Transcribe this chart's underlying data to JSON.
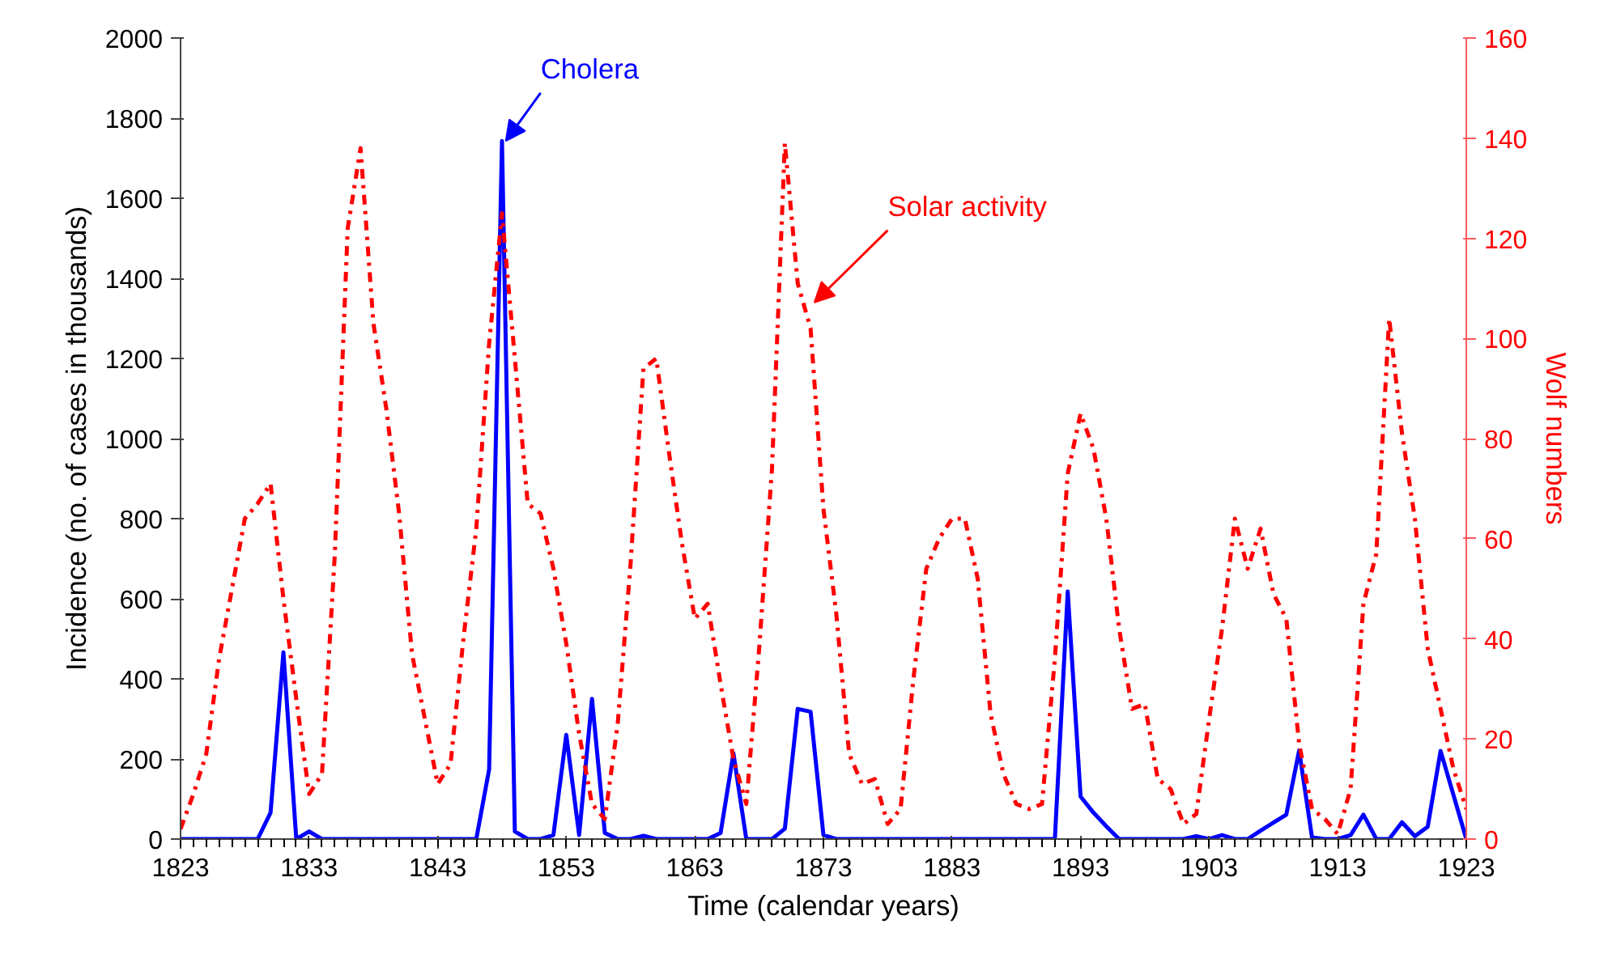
{
  "chart_data": {
    "type": "line",
    "xlabel": "Time (calendar years)",
    "ylabel": "Incidence (no. of cases in thousands)",
    "y2label": "Wolf numbers",
    "x": [
      1823,
      1824,
      1825,
      1826,
      1827,
      1828,
      1829,
      1830,
      1831,
      1832,
      1833,
      1834,
      1835,
      1836,
      1837,
      1838,
      1839,
      1840,
      1841,
      1842,
      1843,
      1844,
      1845,
      1846,
      1847,
      1848,
      1849,
      1850,
      1851,
      1852,
      1853,
      1854,
      1855,
      1856,
      1857,
      1858,
      1859,
      1860,
      1861,
      1862,
      1863,
      1864,
      1865,
      1866,
      1867,
      1868,
      1869,
      1870,
      1871,
      1872,
      1873,
      1874,
      1875,
      1876,
      1877,
      1878,
      1879,
      1880,
      1881,
      1882,
      1883,
      1884,
      1885,
      1886,
      1887,
      1888,
      1889,
      1890,
      1891,
      1892,
      1893,
      1894,
      1895,
      1896,
      1897,
      1898,
      1899,
      1900,
      1901,
      1902,
      1903,
      1904,
      1905,
      1906,
      1907,
      1908,
      1909,
      1910,
      1911,
      1912,
      1913,
      1914,
      1915,
      1916,
      1917,
      1918,
      1919,
      1920,
      1921,
      1922,
      1923
    ],
    "series": [
      {
        "color": "#0000ff",
        "line_style": "solid",
        "values": [
          0,
          0,
          0,
          0,
          0,
          0,
          0,
          66,
          466,
          0,
          19,
          0,
          0,
          0,
          0,
          0,
          0,
          0,
          0,
          0,
          0,
          0,
          0,
          0,
          174,
          1743,
          19,
          0,
          0,
          10,
          260,
          10,
          350,
          15,
          0,
          0,
          8,
          0,
          0,
          0,
          0,
          0,
          15,
          214,
          0,
          0,
          0,
          26,
          325,
          318,
          10,
          0,
          0,
          0,
          0,
          0,
          0,
          0,
          0,
          0,
          0,
          0,
          0,
          0,
          0,
          0,
          0,
          0,
          0,
          618,
          106,
          66,
          32,
          0,
          0,
          0,
          0,
          0,
          0,
          7,
          0,
          10,
          0,
          0,
          21,
          41,
          61,
          221,
          4,
          0,
          0,
          10,
          61,
          0,
          0,
          42,
          7,
          31,
          220,
          110,
          0
        ]
      },
      {
        "color": "#ff0000",
        "line_style": "dashdot",
        "axis": "y2",
        "values": [
          2,
          9,
          17,
          36,
          50,
          64,
          67,
          71,
          48,
          28,
          9,
          13,
          57,
          122,
          138,
          103,
          86,
          65,
          37,
          24,
          11,
          15,
          40,
          62,
          99,
          125,
          96,
          67,
          65,
          54,
          39,
          21,
          7,
          4,
          23,
          55,
          94,
          96,
          77,
          59,
          44,
          47,
          31,
          16,
          7,
          38,
          74,
          139,
          111,
          102,
          66,
          45,
          17,
          11,
          12,
          3,
          6,
          32,
          54,
          60,
          64,
          64,
          52,
          25,
          13,
          7,
          6,
          7,
          36,
          73,
          85,
          78,
          64,
          42,
          26,
          27,
          12,
          10,
          3,
          5,
          24,
          42,
          64,
          54,
          62,
          49,
          44,
          19,
          6,
          4,
          1,
          10,
          47,
          57,
          104,
          81,
          64,
          38,
          26,
          14,
          6
        ]
      }
    ],
    "xlim": [
      1823,
      1923
    ],
    "xticks": [
      1823,
      1833,
      1843,
      1853,
      1863,
      1873,
      1883,
      1893,
      1903,
      1913,
      1923
    ],
    "ylim": [
      0,
      2000
    ],
    "yticks": [
      0,
      200,
      400,
      600,
      800,
      1000,
      1200,
      1400,
      1600,
      1800,
      2000
    ],
    "y2lim": [
      0,
      160
    ],
    "y2ticks": [
      0,
      20,
      40,
      60,
      80,
      100,
      120,
      140,
      160
    ],
    "grid": false,
    "marker": "none",
    "annotations": [
      {
        "text": "Cholera",
        "x": 1848,
        "y": 1743
      },
      {
        "text": "Solar activity",
        "x": 1872,
        "y": 1340
      }
    ]
  }
}
